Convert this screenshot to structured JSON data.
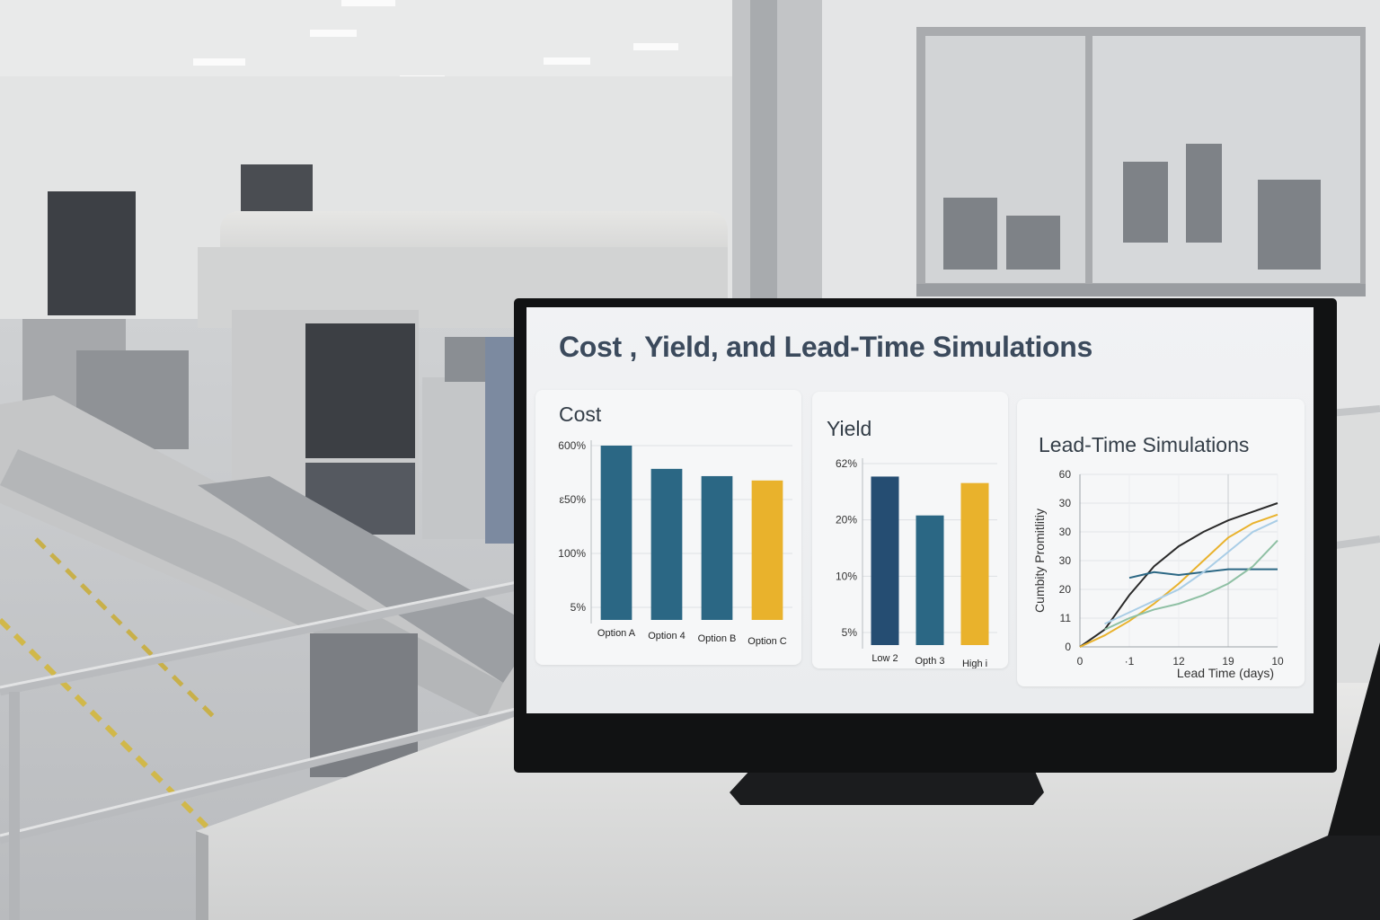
{
  "dashboard": {
    "title": "Cost , Yield, and Lead-Time Simulations"
  },
  "chart_data": [
    {
      "type": "bar",
      "title": "Cost",
      "categories": [
        "Option A",
        "Option 4",
        "Option B",
        "Option C"
      ],
      "values": [
        600,
        520,
        495,
        480
      ],
      "yticks": [
        "600%",
        "ɛ50%",
        "100%",
        "5%"
      ],
      "colors": [
        "#2b6784",
        "#2b6784",
        "#2b6784",
        "#e9b22c"
      ],
      "grid": true
    },
    {
      "type": "bar",
      "title": "Yield",
      "categories": [
        "Low 2",
        "Opth 3",
        "High i"
      ],
      "values": [
        26,
        20,
        25
      ],
      "yticks": [
        "62%",
        "20%",
        "10%",
        "5%"
      ],
      "colors": [
        "#254d72",
        "#2b6784",
        "#e9b22c"
      ],
      "grid": true
    },
    {
      "type": "line",
      "title": "Lead-Time Simulations",
      "xlabel": "Lead Time (days)",
      "ylabel": "Cumbity Promitlitiy",
      "yticks": [
        "60",
        "30",
        "30",
        "30",
        "20",
        "11",
        "0"
      ],
      "xticks": [
        "0",
        "·1",
        "12",
        "19",
        "10"
      ],
      "grid": true,
      "series": [
        {
          "color": "#2a2a2a",
          "x": [
            0,
            1,
            2,
            3,
            4,
            5,
            6,
            7,
            8
          ],
          "y": [
            0,
            6,
            18,
            28,
            35,
            40,
            44,
            47,
            50
          ]
        },
        {
          "color": "#e9b22c",
          "x": [
            0,
            1,
            2,
            3,
            4,
            5,
            6,
            7,
            8
          ],
          "y": [
            0,
            4,
            9,
            15,
            22,
            30,
            38,
            43,
            46
          ]
        },
        {
          "color": "#2b6784",
          "x": [
            2,
            3,
            4,
            5,
            6,
            7,
            8
          ],
          "y": [
            24,
            26,
            25,
            26,
            27,
            27,
            27
          ]
        },
        {
          "color": "#8fc0a4",
          "x": [
            1,
            2,
            3,
            4,
            5,
            6,
            7,
            8
          ],
          "y": [
            6,
            10,
            13,
            15,
            18,
            22,
            28,
            37
          ]
        },
        {
          "color": "#a9cde6",
          "x": [
            1,
            2,
            3,
            4,
            5,
            6,
            7,
            8
          ],
          "y": [
            8,
            12,
            16,
            20,
            26,
            33,
            40,
            44
          ]
        }
      ]
    }
  ]
}
